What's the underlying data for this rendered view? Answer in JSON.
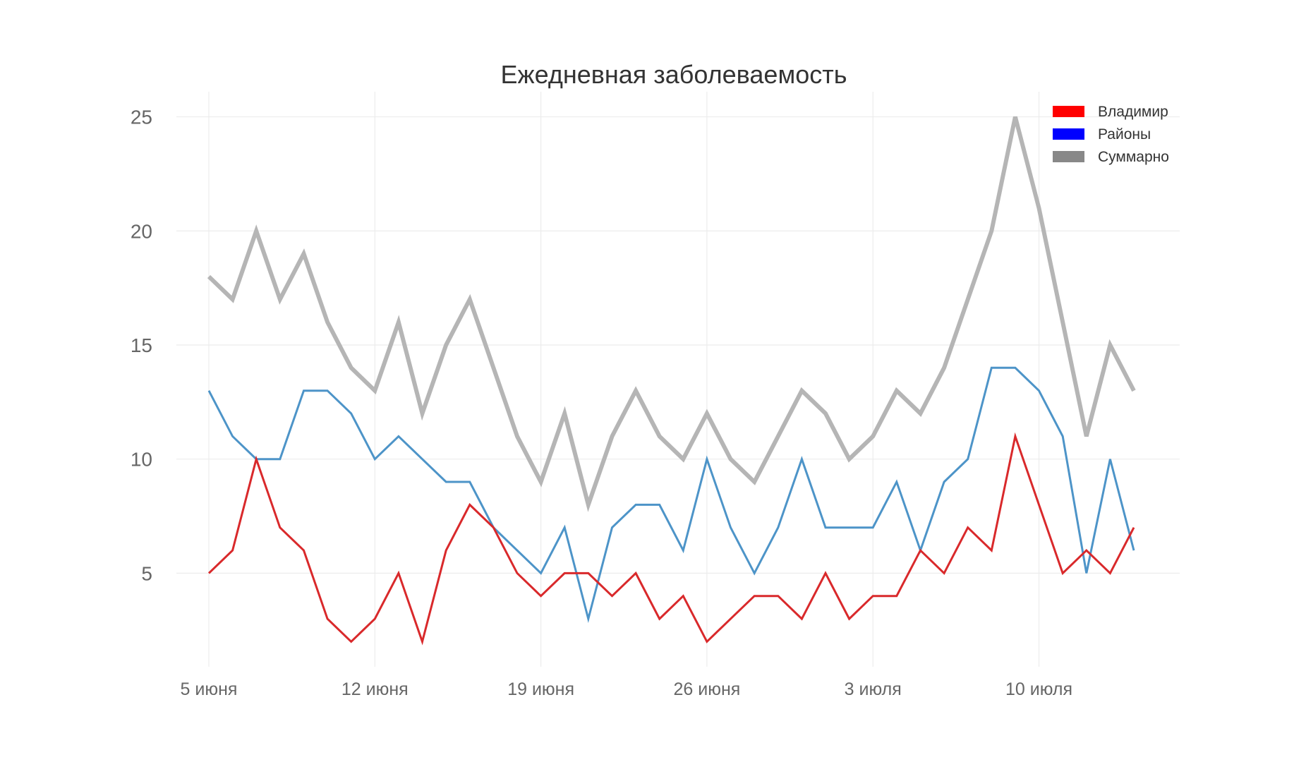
{
  "chart_data": {
    "type": "line",
    "title": "Ежедневная заболеваемость",
    "xlabel": "",
    "ylabel": "",
    "x": [
      "2020-06-05",
      "2020-06-06",
      "2020-06-07",
      "2020-06-08",
      "2020-06-09",
      "2020-06-10",
      "2020-06-11",
      "2020-06-12",
      "2020-06-13",
      "2020-06-14",
      "2020-06-15",
      "2020-06-16",
      "2020-06-17",
      "2020-06-18",
      "2020-06-19",
      "2020-06-20",
      "2020-06-21",
      "2020-06-22",
      "2020-06-23",
      "2020-06-24",
      "2020-06-25",
      "2020-06-26",
      "2020-06-27",
      "2020-06-28",
      "2020-06-29",
      "2020-06-30",
      "2020-07-01",
      "2020-07-02",
      "2020-07-03",
      "2020-07-04",
      "2020-07-05",
      "2020-07-06",
      "2020-07-07",
      "2020-07-08",
      "2020-07-09",
      "2020-07-10",
      "2020-07-11",
      "2020-07-12",
      "2020-07-13",
      "2020-07-14"
    ],
    "x_ticks": [
      {
        "x": "2020-06-05",
        "label": "5 июня"
      },
      {
        "x": "2020-06-12",
        "label": "12 июня"
      },
      {
        "x": "2020-06-19",
        "label": "19 июня"
      },
      {
        "x": "2020-06-26",
        "label": "26 июня"
      },
      {
        "x": "2020-07-03",
        "label": "3 июля"
      },
      {
        "x": "2020-07-10",
        "label": "10 июля"
      }
    ],
    "y_ticks": [
      5,
      10,
      15,
      20,
      25
    ],
    "ylim": [
      0.9,
      26.1
    ],
    "grid": true,
    "legend_position": "top-right",
    "series": [
      {
        "name": "Суммарно",
        "color": "#b5b5b5",
        "legend_color": "#888888",
        "values": [
          18,
          17,
          20,
          17,
          19,
          16,
          14,
          13,
          16,
          12,
          15,
          17,
          14,
          11,
          9,
          12,
          8,
          11,
          13,
          11,
          10,
          12,
          10,
          9,
          11,
          13,
          12,
          10,
          11,
          13,
          12,
          14,
          17,
          20,
          25,
          21,
          16,
          11,
          15,
          13
        ]
      },
      {
        "name": "Районы",
        "color": "#4d94c8",
        "legend_color": "#0000ff",
        "values": [
          13,
          11,
          10,
          10,
          13,
          13,
          12,
          10,
          11,
          10,
          9,
          9,
          7,
          6,
          5,
          7,
          3,
          7,
          8,
          8,
          6,
          10,
          7,
          5,
          7,
          10,
          7,
          7,
          7,
          9,
          6,
          9,
          10,
          14,
          14,
          13,
          11,
          5,
          10,
          6
        ]
      },
      {
        "name": "Владимир",
        "color": "#d9292b",
        "legend_color": "#ff0000",
        "values": [
          5,
          6,
          10,
          7,
          6,
          3,
          2,
          3,
          5,
          2,
          6,
          8,
          7,
          5,
          4,
          5,
          5,
          4,
          5,
          3,
          4,
          2,
          3,
          4,
          4,
          3,
          5,
          3,
          4,
          4,
          6,
          5,
          7,
          6,
          11,
          8,
          5,
          6,
          5,
          7
        ]
      }
    ],
    "legend": [
      "Владимир",
      "Районы",
      "Суммарно"
    ]
  }
}
